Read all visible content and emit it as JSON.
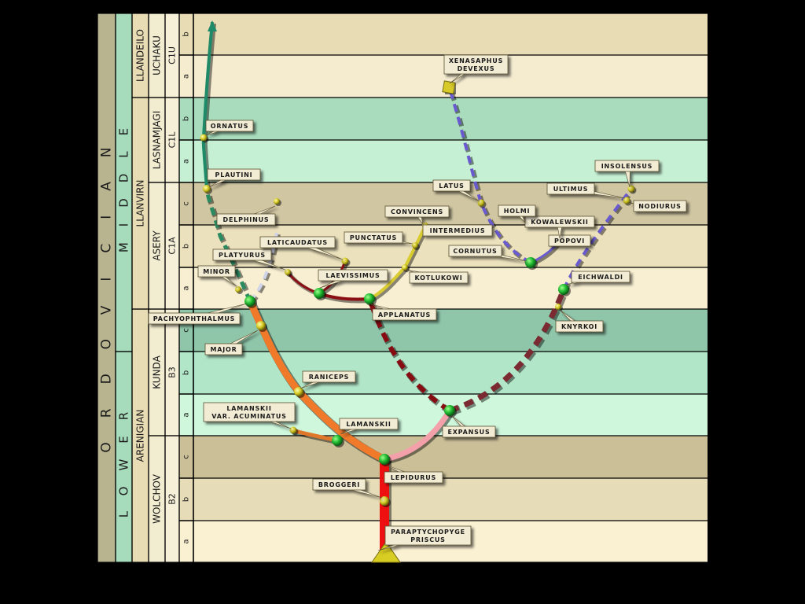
{
  "colors": {
    "background": "#000000",
    "col_system": "#b8b490",
    "col_series": "#a6dcbc",
    "col_stage": "#e8dcb4",
    "col_regstage": "#f2ecd0",
    "col_index": "#f6f0d8",
    "label_fill": "#f3ecd4",
    "node_green": "#19b629",
    "node_yellow": "#d9cf2a"
  },
  "strat": {
    "system": "ORDOVICIAN",
    "series": [
      {
        "name": "LOWER",
        "top": "b3_b",
        "bottom": "b2_a"
      },
      {
        "name": "MIDDLE",
        "top": "c1u_b",
        "bottom": "b3_c"
      }
    ],
    "stages": [
      {
        "name": "LLANDEILO",
        "top": "c1u_b",
        "bottom": "c1u_a"
      },
      {
        "name": "LLANVIRN",
        "top": "c1l_b",
        "bottom": "c1a_a"
      },
      {
        "name": "ARENIGIAN",
        "top": "b3_c",
        "bottom": "b2_a"
      }
    ],
    "regional_stages": [
      {
        "name": "UCHAKU",
        "top": "c1u_b",
        "bottom": "c1u_a"
      },
      {
        "name": "LASNAMJAGI",
        "top": "c1l_b",
        "bottom": "c1l_a"
      },
      {
        "name": "ASERY",
        "top": "c1a_c",
        "bottom": "c1a_a"
      },
      {
        "name": "KUNDA",
        "top": "b3_c",
        "bottom": "b3_a"
      },
      {
        "name": "WOLCHOV",
        "top": "b2_c",
        "bottom": "b2_a"
      }
    ],
    "indices": [
      {
        "name": "C1U",
        "top": "c1u_b",
        "bottom": "c1u_a"
      },
      {
        "name": "C1L",
        "top": "c1l_b",
        "bottom": "c1l_a"
      },
      {
        "name": "C1A",
        "top": "c1a_c",
        "bottom": "c1a_a"
      },
      {
        "name": "B3",
        "top": "b3_c",
        "bottom": "b3_a"
      },
      {
        "name": "B2",
        "top": "b2_c",
        "bottom": "b2_a"
      }
    ],
    "subzones": [
      {
        "id": "c1u_b",
        "letter": "b",
        "color": "#e8dcb4"
      },
      {
        "id": "c1u_a",
        "letter": "a",
        "color": "#f5ecd0"
      },
      {
        "id": "c1l_b",
        "letter": "b",
        "color": "#a8dcbc"
      },
      {
        "id": "c1l_a",
        "letter": "a",
        "color": "#c6f0d4"
      },
      {
        "id": "c1a_c",
        "letter": "c",
        "color": "#d0c6a2"
      },
      {
        "id": "c1a_b",
        "letter": "b",
        "color": "#ebe1bc"
      },
      {
        "id": "c1a_a",
        "letter": "a",
        "color": "#f8efd2"
      },
      {
        "id": "b3_c",
        "letter": "c",
        "color": "#8fc6aa"
      },
      {
        "id": "b3_b",
        "letter": "b",
        "color": "#b2e6c8"
      },
      {
        "id": "b3_a",
        "letter": "a",
        "color": "#cef7dc"
      },
      {
        "id": "b2_c",
        "letter": "c",
        "color": "#cbbf98"
      },
      {
        "id": "b2_b",
        "letter": "b",
        "color": "#e6dcb8"
      },
      {
        "id": "b2_a",
        "letter": "a",
        "color": "#faf0d2"
      }
    ]
  },
  "taxa": [
    {
      "id": "priscus",
      "lines": [
        "PARAPTYCHOPYGE",
        "PRISCUS"
      ]
    },
    {
      "id": "broggeri",
      "lines": [
        "BROGGERI"
      ]
    },
    {
      "id": "lepidurus",
      "lines": [
        "LEPIDURUS"
      ]
    },
    {
      "id": "lamanskii",
      "lines": [
        "LAMANSKII"
      ]
    },
    {
      "id": "acuminatus",
      "lines": [
        "LAMANSKII",
        "VAR. ACUMINATUS"
      ]
    },
    {
      "id": "raniceps",
      "lines": [
        "RANICEPS"
      ]
    },
    {
      "id": "major",
      "lines": [
        "MAJOR"
      ]
    },
    {
      "id": "pachyophthalmus",
      "lines": [
        "PACHYOPHTHALMUS"
      ]
    },
    {
      "id": "minor",
      "lines": [
        "MINOR"
      ]
    },
    {
      "id": "platyurus",
      "lines": [
        "PLATYURUS"
      ]
    },
    {
      "id": "delphinus",
      "lines": [
        "DELPHINUS"
      ]
    },
    {
      "id": "plautini",
      "lines": [
        "PLAUTINI"
      ]
    },
    {
      "id": "ornatus",
      "lines": [
        "ORNATUS"
      ]
    },
    {
      "id": "laticaudatus",
      "lines": [
        "LATICAUDATUS"
      ]
    },
    {
      "id": "laevissimus",
      "lines": [
        "LAEVISSIMUS"
      ]
    },
    {
      "id": "punctatus",
      "lines": [
        "PUNCTATUS"
      ]
    },
    {
      "id": "convincens",
      "lines": [
        "CONVINCENS"
      ]
    },
    {
      "id": "intermedius",
      "lines": [
        "INTERMEDIUS"
      ]
    },
    {
      "id": "kotlukowi",
      "lines": [
        "KOTLUKOWI"
      ]
    },
    {
      "id": "applanatus",
      "lines": [
        "APPLANATUS"
      ]
    },
    {
      "id": "expansus",
      "lines": [
        "EXPANSUS"
      ]
    },
    {
      "id": "knyrkoi",
      "lines": [
        "KNYRKOI"
      ]
    },
    {
      "id": "eichwaldi",
      "lines": [
        "EICHWALDI"
      ]
    },
    {
      "id": "cornutus",
      "lines": [
        "CORNUTUS"
      ]
    },
    {
      "id": "popovi",
      "lines": [
        "POPOVI"
      ]
    },
    {
      "id": "kowalewskii",
      "lines": [
        "KOWALEWSKII"
      ]
    },
    {
      "id": "holmi",
      "lines": [
        "HOLMI"
      ]
    },
    {
      "id": "latus",
      "lines": [
        "LATUS"
      ]
    },
    {
      "id": "ultimus",
      "lines": [
        "ULTIMUS"
      ]
    },
    {
      "id": "nodiurus",
      "lines": [
        "NODIURUS"
      ]
    },
    {
      "id": "insolensus",
      "lines": [
        "INSOLENSUS"
      ]
    },
    {
      "id": "xenasaphus",
      "lines": [
        "XENASAPHUS",
        "DEVEXUS"
      ]
    }
  ]
}
